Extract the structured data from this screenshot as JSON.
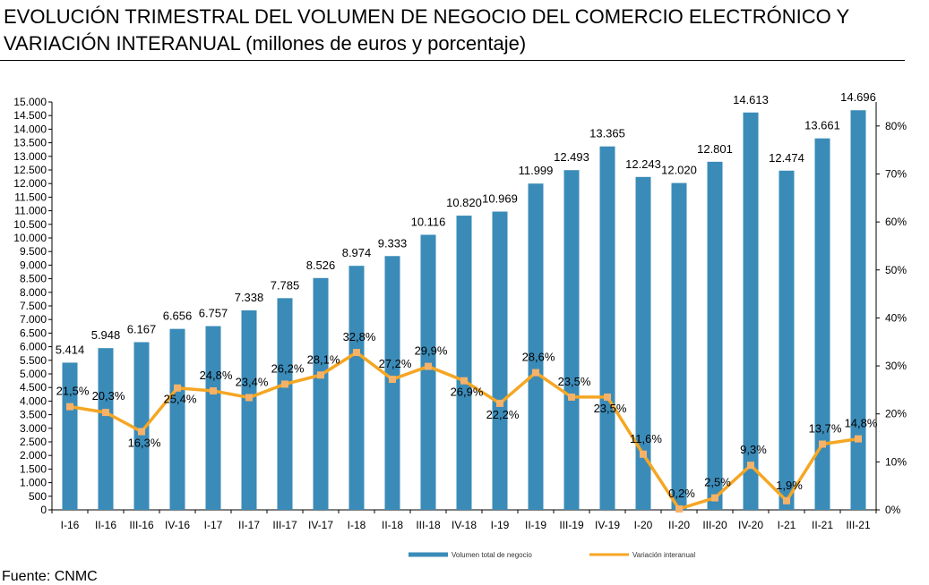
{
  "title": "EVOLUCIÓN TRIMESTRAL DEL VOLUMEN DE NEGOCIO DEL COMERCIO ELECTRÓNICO Y VARIACIÓN INTERANUAL (millones de euros y porcentaje)",
  "source": "Fuente: CNMC",
  "colors": {
    "bar": "#3a8bb8",
    "line": "#f5a623",
    "marker": "#f7b26a"
  },
  "chart_data": {
    "type": "bar",
    "categories": [
      "I-16",
      "II-16",
      "III-16",
      "IV-16",
      "I-17",
      "II-17",
      "III-17",
      "IV-17",
      "I-18",
      "II-18",
      "III-18",
      "IV-18",
      "I-19",
      "II-19",
      "III-19",
      "IV-19",
      "I-20",
      "II-20",
      "III-20",
      "IV-20",
      "I-21",
      "II-21",
      "III-21"
    ],
    "series": [
      {
        "name": "Volumen total de negocio",
        "type": "bar",
        "axis": "left",
        "values": [
          5414,
          5948,
          6167,
          6656,
          6757,
          7338,
          7785,
          8526,
          8974,
          9333,
          10116,
          10820,
          10969,
          11999,
          12493,
          13365,
          12243,
          12020,
          12801,
          14613,
          12474,
          13661,
          14696
        ],
        "labels": [
          "5.414",
          "5.948",
          "6.167",
          "6.656",
          "6.757",
          "7.338",
          "7.785",
          "8.526",
          "8.974",
          "9.333",
          "10.116",
          "10.820",
          "10.969",
          "11.999",
          "12.493",
          "13.365",
          "12.243",
          "12.020",
          "12.801",
          "14.613",
          "12.474",
          "13.661",
          "14.696"
        ]
      },
      {
        "name": "Variación interanual",
        "type": "line",
        "axis": "right",
        "values": [
          21.5,
          20.3,
          16.3,
          25.4,
          24.8,
          23.4,
          26.2,
          28.1,
          32.8,
          27.2,
          29.9,
          26.9,
          22.2,
          28.6,
          23.5,
          23.5,
          11.6,
          0.2,
          2.5,
          9.3,
          1.9,
          13.7,
          14.8
        ],
        "labels": [
          "21,5%",
          "20,3%",
          "16,3%",
          "25,4%",
          "24,8%",
          "23,4%",
          "26,2%",
          "28,1%",
          "32,8%",
          "27,2%",
          "29,9%",
          "26,9%",
          "22,2%",
          "28,6%",
          "23,5%",
          "23,5%",
          "11,6%",
          "0,2%",
          "2,5%",
          "9,3%",
          "1,9%",
          "13,7%",
          "14,8%"
        ]
      }
    ],
    "y_left": {
      "range": [
        0,
        15000
      ],
      "ticks": [
        0,
        500,
        1000,
        1500,
        2000,
        2500,
        3000,
        3500,
        4000,
        4500,
        5000,
        5500,
        6000,
        6500,
        7000,
        7500,
        8000,
        8500,
        9000,
        9500,
        10000,
        10500,
        11000,
        11500,
        12000,
        12500,
        13000,
        13500,
        14000,
        14500,
        15000
      ],
      "tick_labels": [
        "0",
        "500",
        "1.000",
        "1.500",
        "2.000",
        "2.500",
        "3.000",
        "3.500",
        "4.000",
        "4.500",
        "5.000",
        "5.500",
        "6.000",
        "6.500",
        "7.000",
        "7.500",
        "8.000",
        "8.500",
        "9.000",
        "9.500",
        "10.000",
        "10.500",
        "11.000",
        "11.500",
        "12.000",
        "12.500",
        "13.000",
        "13.500",
        "14.000",
        "14.500",
        "15.000"
      ]
    },
    "y_right": {
      "range": [
        0,
        85
      ],
      "ticks": [
        0,
        10,
        20,
        30,
        40,
        50,
        60,
        70,
        80
      ],
      "tick_labels": [
        "0%",
        "10%",
        "20%",
        "30%",
        "40%",
        "50%",
        "60%",
        "70%",
        "80%"
      ]
    },
    "grid": false,
    "legend": "bottom-center"
  }
}
